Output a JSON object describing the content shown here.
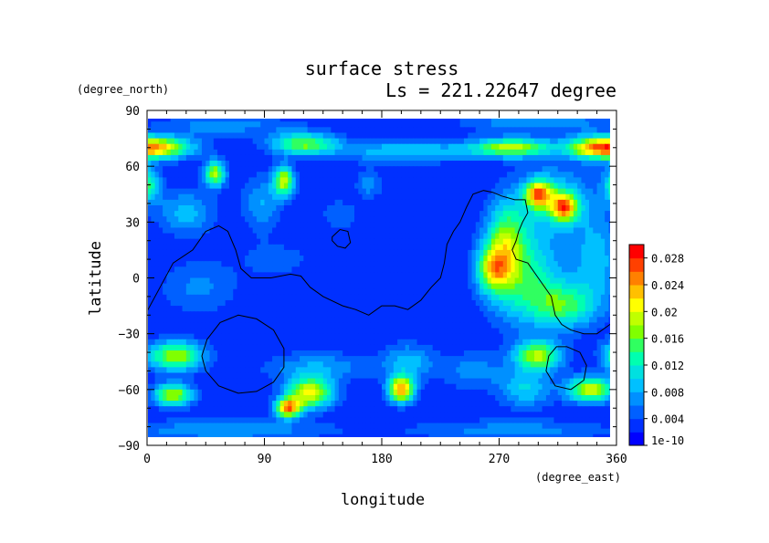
{
  "chart_data": {
    "type": "heatmap",
    "title": "surface stress",
    "subtitle": "Ls = 221.22647 degree",
    "xlabel": "longitude",
    "ylabel": "latitude",
    "x_unit": "(degree_east)",
    "y_unit": "(degree_north)",
    "xlim": [
      0,
      360
    ],
    "ylim": [
      -90,
      90
    ],
    "x_ticks": [
      0,
      90,
      180,
      270,
      360
    ],
    "y_ticks": [
      90,
      60,
      30,
      0,
      -30,
      -60,
      -90
    ],
    "colorbar": {
      "min": 0,
      "max": 0.03,
      "tick_values": [
        0,
        0.004,
        0.008,
        0.012,
        0.016,
        0.02,
        0.024,
        0.028
      ],
      "tick_labels": [
        "1e-10",
        "0.004",
        "0.008",
        "0.012",
        "0.016",
        "0.02",
        "0.024",
        "0.028"
      ],
      "colors": [
        "#0000ff",
        "#0030ff",
        "#0060ff",
        "#0090ff",
        "#00c0ff",
        "#00e0e0",
        "#00ffb0",
        "#30ff60",
        "#80ff00",
        "#c0ff00",
        "#ffff00",
        "#ffc000",
        "#ff8000",
        "#ff4000",
        "#ff0000"
      ]
    },
    "background": 0.002,
    "blobs": [
      {
        "lon": 0,
        "lat": 70,
        "rlon": 32,
        "rlat": 6,
        "v": 0.024
      },
      {
        "lon": 360,
        "lat": 70,
        "rlon": 32,
        "rlat": 6,
        "v": 0.024
      },
      {
        "lon": 340,
        "lat": 70,
        "rlon": 16,
        "rlat": 6,
        "v": 0.006
      },
      {
        "lon": 120,
        "lat": 72,
        "rlon": 25,
        "rlat": 6,
        "v": 0.014
      },
      {
        "lon": 200,
        "lat": 68,
        "rlon": 55,
        "rlat": 6,
        "v": 0.008
      },
      {
        "lon": 280,
        "lat": 70,
        "rlon": 30,
        "rlat": 5,
        "v": 0.016
      },
      {
        "lon": 300,
        "lat": 84,
        "rlon": 60,
        "rlat": 6,
        "v": 0.006
      },
      {
        "lon": 60,
        "lat": 82,
        "rlon": 55,
        "rlat": 6,
        "v": 0.005
      },
      {
        "lon": 52,
        "lat": 56,
        "rlon": 8,
        "rlat": 7,
        "v": 0.016
      },
      {
        "lon": 105,
        "lat": 52,
        "rlon": 8,
        "rlat": 8,
        "v": 0.017
      },
      {
        "lon": 0,
        "lat": 50,
        "rlon": 10,
        "rlat": 10,
        "v": 0.012
      },
      {
        "lon": 360,
        "lat": 50,
        "rlon": 10,
        "rlat": 10,
        "v": 0.012
      },
      {
        "lon": 30,
        "lat": 35,
        "rlon": 22,
        "rlat": 12,
        "v": 0.007
      },
      {
        "lon": 88,
        "lat": 40,
        "rlon": 15,
        "rlat": 15,
        "v": 0.006
      },
      {
        "lon": 170,
        "lat": 50,
        "rlon": 10,
        "rlat": 8,
        "v": 0.005
      },
      {
        "lon": 148,
        "lat": 34,
        "rlon": 14,
        "rlat": 8,
        "v": 0.004
      },
      {
        "lon": 300,
        "lat": 45,
        "rlon": 10,
        "rlat": 7,
        "v": 0.018
      },
      {
        "lon": 320,
        "lat": 38,
        "rlon": 10,
        "rlat": 7,
        "v": 0.018
      },
      {
        "lon": 312,
        "lat": 42,
        "rlon": 28,
        "rlat": 18,
        "v": 0.009
      },
      {
        "lon": 275,
        "lat": 20,
        "rlon": 15,
        "rlat": 22,
        "v": 0.012
      },
      {
        "lon": 290,
        "lat": 0,
        "rlon": 30,
        "rlat": 25,
        "v": 0.011
      },
      {
        "lon": 320,
        "lat": -15,
        "rlon": 25,
        "rlat": 12,
        "v": 0.011
      },
      {
        "lon": 265,
        "lat": 5,
        "rlon": 12,
        "rlat": 12,
        "v": 0.013
      },
      {
        "lon": 345,
        "lat": 10,
        "rlon": 18,
        "rlat": 25,
        "v": 0.007
      },
      {
        "lon": 22,
        "lat": -42,
        "rlon": 22,
        "rlat": 8,
        "v": 0.016
      },
      {
        "lon": 360,
        "lat": -42,
        "rlon": 12,
        "rlat": 8,
        "v": 0.012
      },
      {
        "lon": 20,
        "lat": -63,
        "rlon": 15,
        "rlat": 6,
        "v": 0.017
      },
      {
        "lon": 125,
        "lat": -62,
        "rlon": 18,
        "rlat": 8,
        "v": 0.019
      },
      {
        "lon": 108,
        "lat": -70,
        "rlon": 10,
        "rlat": 5,
        "v": 0.022
      },
      {
        "lon": 130,
        "lat": -48,
        "rlon": 40,
        "rlat": 8,
        "v": 0.006
      },
      {
        "lon": 195,
        "lat": -60,
        "rlon": 10,
        "rlat": 7,
        "v": 0.022
      },
      {
        "lon": 200,
        "lat": -45,
        "rlon": 20,
        "rlat": 10,
        "v": 0.007
      },
      {
        "lon": 300,
        "lat": -42,
        "rlon": 18,
        "rlat": 8,
        "v": 0.016
      },
      {
        "lon": 340,
        "lat": -60,
        "rlon": 18,
        "rlat": 7,
        "v": 0.018
      },
      {
        "lon": 290,
        "lat": -60,
        "rlon": 20,
        "rlat": 10,
        "v": 0.008
      },
      {
        "lon": 250,
        "lat": -50,
        "rlon": 25,
        "rlat": 10,
        "v": 0.005
      },
      {
        "lon": 60,
        "lat": -82,
        "rlon": 80,
        "rlat": 6,
        "v": 0.006
      },
      {
        "lon": 280,
        "lat": -82,
        "rlon": 80,
        "rlat": 6,
        "v": 0.005
      },
      {
        "lon": 40,
        "lat": -5,
        "rlon": 30,
        "rlat": 15,
        "v": 0.0045
      },
      {
        "lon": 100,
        "lat": 10,
        "rlon": 30,
        "rlat": 10,
        "v": 0.003
      }
    ],
    "contours": [
      {
        "name": "continent-outline",
        "closed": false,
        "points": [
          [
            0,
            -18
          ],
          [
            10,
            -5
          ],
          [
            20,
            8
          ],
          [
            35,
            15
          ],
          [
            45,
            25
          ],
          [
            55,
            28
          ],
          [
            62,
            25
          ],
          [
            68,
            15
          ],
          [
            72,
            5
          ],
          [
            80,
            0
          ],
          [
            95,
            0
          ],
          [
            110,
            2
          ],
          [
            118,
            1
          ],
          [
            125,
            -5
          ],
          [
            135,
            -10
          ],
          [
            150,
            -15
          ],
          [
            160,
            -17
          ],
          [
            170,
            -20
          ],
          [
            180,
            -15
          ],
          [
            190,
            -15
          ],
          [
            200,
            -17
          ],
          [
            210,
            -12
          ],
          [
            218,
            -5
          ],
          [
            225,
            0
          ],
          [
            228,
            8
          ],
          [
            230,
            18
          ],
          [
            235,
            25
          ],
          [
            240,
            30
          ],
          [
            245,
            38
          ],
          [
            250,
            45
          ],
          [
            258,
            47
          ],
          [
            265,
            46
          ],
          [
            272,
            44
          ],
          [
            282,
            42
          ],
          [
            290,
            42
          ],
          [
            292,
            35
          ],
          [
            288,
            30
          ],
          [
            285,
            25
          ],
          [
            283,
            20
          ],
          [
            280,
            15
          ],
          [
            283,
            10
          ],
          [
            292,
            8
          ],
          [
            300,
            0
          ],
          [
            310,
            -10
          ],
          [
            313,
            -20
          ],
          [
            318,
            -25
          ],
          [
            325,
            -28
          ],
          [
            335,
            -30
          ],
          [
            345,
            -30
          ],
          [
            355,
            -25
          ],
          [
            360,
            -20
          ]
        ]
      },
      {
        "name": "island-outline",
        "closed": true,
        "points": [
          [
            142,
            22
          ],
          [
            148,
            26
          ],
          [
            154,
            25
          ],
          [
            156,
            19
          ],
          [
            152,
            16
          ],
          [
            146,
            17
          ],
          [
            142,
            20
          ]
        ]
      },
      {
        "name": "basin-outline-west",
        "closed": true,
        "points": [
          [
            70,
            -20
          ],
          [
            84,
            -22
          ],
          [
            97,
            -28
          ],
          [
            105,
            -38
          ],
          [
            105,
            -48
          ],
          [
            97,
            -56
          ],
          [
            84,
            -61
          ],
          [
            70,
            -62
          ],
          [
            55,
            -58
          ],
          [
            45,
            -50
          ],
          [
            42,
            -42
          ],
          [
            46,
            -33
          ],
          [
            56,
            -24
          ]
        ]
      },
      {
        "name": "basin-outline-east",
        "closed": true,
        "points": [
          [
            322,
            -37
          ],
          [
            332,
            -40
          ],
          [
            337,
            -47
          ],
          [
            335,
            -55
          ],
          [
            325,
            -60
          ],
          [
            313,
            -58
          ],
          [
            306,
            -50
          ],
          [
            308,
            -42
          ],
          [
            314,
            -37
          ]
        ]
      }
    ]
  }
}
